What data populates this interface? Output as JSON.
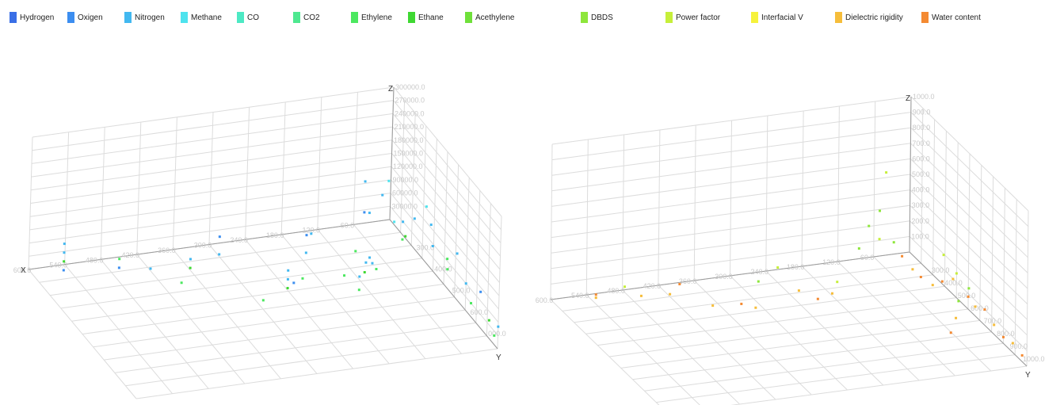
{
  "legend": [
    {
      "label": "Hydrogen",
      "color": "#3a6fe6"
    },
    {
      "label": "Oxigen",
      "color": "#3c8ef0"
    },
    {
      "label": "Nitrogen",
      "color": "#42b8f0"
    },
    {
      "label": "Methane",
      "color": "#4ee3ee"
    },
    {
      "label": "CO",
      "color": "#4de9c4"
    },
    {
      "label": "CO2",
      "color": "#4ee890"
    },
    {
      "label": "Ethylene",
      "color": "#4ce860"
    },
    {
      "label": "Ethane",
      "color": "#3fd832"
    },
    {
      "label": "Acethylene",
      "color": "#6fe03a"
    },
    {
      "label": "DBDS",
      "color": "#8ee63c"
    },
    {
      "label": "Power factor",
      "color": "#c6ef3a"
    },
    {
      "label": "Interfacial V",
      "color": "#f6f23c"
    },
    {
      "label": "Dielectric rigidity",
      "color": "#f6bd3a"
    },
    {
      "label": "Water content",
      "color": "#f48a32"
    }
  ],
  "chart_data": [
    {
      "type": "scatter",
      "title": "",
      "xlabel": "X",
      "ylabel": "Y",
      "zlabel": "Z",
      "xlim": [
        0,
        600
      ],
      "ylim": [
        0,
        600
      ],
      "zlim": [
        0,
        300000
      ],
      "x_ticks": [
        "60.0",
        "120.0",
        "180.0",
        "240.0",
        "300.0",
        "360.0",
        "420.0",
        "480.0",
        "540.0",
        "600.0"
      ],
      "z_ticks": [
        "30000.0",
        "60000.0",
        "90000.0",
        "120000.0",
        "150000.0",
        "180000.0",
        "210000.0",
        "240000.0",
        "270000.0",
        "300000.0"
      ],
      "y_ticks": [
        "300.0",
        "400.0",
        "500.0",
        "600.0",
        "000.0"
      ],
      "series_names": [
        "Hydrogen",
        "Oxigen",
        "Nitrogen",
        "Methane",
        "CO",
        "CO2",
        "Ethylene",
        "Ethane",
        "Acethylene"
      ],
      "points": [
        [
          560,
          60,
          20000,
          1
        ],
        [
          560,
          60,
          60000,
          2
        ],
        [
          560,
          60,
          80000,
          2
        ],
        [
          560,
          60,
          40000,
          7
        ],
        [
          480,
          100,
          30000,
          1
        ],
        [
          480,
          100,
          50000,
          6
        ],
        [
          440,
          140,
          40000,
          2
        ],
        [
          400,
          180,
          20000,
          6
        ],
        [
          380,
          160,
          60000,
          2
        ],
        [
          380,
          160,
          40000,
          7
        ],
        [
          320,
          120,
          80000,
          1
        ],
        [
          320,
          120,
          40000,
          2
        ],
        [
          300,
          300,
          20000,
          6
        ],
        [
          260,
          300,
          60000,
          2
        ],
        [
          260,
          300,
          80000,
          2
        ],
        [
          260,
          300,
          40000,
          7
        ],
        [
          250,
          300,
          50000,
          1
        ],
        [
          220,
          250,
          30000,
          6
        ],
        [
          200,
          200,
          100000,
          1
        ],
        [
          200,
          200,
          60000,
          2
        ],
        [
          180,
          160,
          80000,
          2
        ],
        [
          160,
          280,
          40000,
          6
        ],
        [
          150,
          330,
          30000,
          6
        ],
        [
          150,
          330,
          60000,
          2
        ],
        [
          140,
          330,
          90000,
          2
        ],
        [
          120,
          260,
          30000,
          7
        ],
        [
          120,
          300,
          70000,
          2
        ],
        [
          100,
          220,
          40000,
          2
        ],
        [
          90,
          180,
          120000,
          2
        ],
        [
          80,
          120,
          160000,
          2
        ],
        [
          80,
          120,
          90000,
          1
        ],
        [
          60,
          150,
          140000,
          2
        ],
        [
          50,
          150,
          170000,
          3
        ],
        [
          40,
          200,
          100000,
          2
        ],
        [
          40,
          200,
          60000,
          6
        ],
        [
          30,
          230,
          120000,
          2
        ],
        [
          20,
          260,
          160000,
          3
        ],
        [
          20,
          300,
          90000,
          2
        ],
        [
          10,
          350,
          60000,
          6
        ],
        [
          10,
          400,
          120000,
          2
        ],
        [
          0,
          420,
          60000,
          2
        ],
        [
          0,
          450,
          30000,
          6
        ],
        [
          0,
          500,
          80000,
          1
        ],
        [
          0,
          550,
          40000,
          7
        ],
        [
          0,
          580,
          20000,
          6
        ],
        [
          0,
          600,
          50000,
          2
        ],
        [
          70,
          250,
          130000,
          3
        ],
        [
          110,
          290,
          50000,
          6
        ],
        [
          130,
          240,
          70000,
          6
        ],
        [
          60,
          280,
          110000,
          7
        ],
        [
          30,
          320,
          150000,
          2
        ],
        [
          20,
          380,
          100000,
          6
        ]
      ]
    },
    {
      "type": "scatter",
      "title": "",
      "xlabel": "",
      "ylabel": "Y",
      "zlabel": "Z",
      "xlim": [
        0,
        600
      ],
      "ylim": [
        0,
        1000
      ],
      "zlim": [
        0,
        1000
      ],
      "x_ticks": [
        "60.0",
        "120.0",
        "180.0",
        "240.0",
        "300.0",
        "360.0",
        "420.0",
        "480.0",
        "540.0",
        "600.0"
      ],
      "z_ticks": [
        "100.0",
        "200.0",
        "300.0",
        "400.0",
        "500.0",
        "600.0",
        "700.0",
        "800.0",
        "900.0",
        "1000.0"
      ],
      "y_ticks": [
        "300.0",
        "400.0",
        "500.0",
        "600.0",
        "700.0",
        "800.0",
        "900.0",
        "1000.0"
      ],
      "series_names": [
        "DBDS",
        "Power factor",
        "Interfacial V",
        "Dielectric rigidity",
        "Water content"
      ],
      "points": [
        [
          540,
          80,
          60,
          4
        ],
        [
          540,
          80,
          40,
          3
        ],
        [
          500,
          120,
          120,
          1
        ],
        [
          480,
          160,
          80,
          3
        ],
        [
          440,
          200,
          100,
          3
        ],
        [
          420,
          180,
          140,
          4
        ],
        [
          380,
          260,
          40,
          3
        ],
        [
          340,
          300,
          60,
          4
        ],
        [
          320,
          320,
          40,
          3
        ],
        [
          300,
          240,
          140,
          0
        ],
        [
          260,
          200,
          180,
          1
        ],
        [
          240,
          280,
          80,
          3
        ],
        [
          220,
          340,
          60,
          4
        ],
        [
          200,
          360,
          100,
          3
        ],
        [
          180,
          300,
          120,
          1
        ],
        [
          140,
          280,
          300,
          0
        ],
        [
          120,
          260,
          420,
          0
        ],
        [
          110,
          300,
          360,
          1
        ],
        [
          100,
          250,
          500,
          0
        ],
        [
          80,
          200,
          700,
          1
        ],
        [
          70,
          220,
          260,
          0
        ],
        [
          60,
          240,
          180,
          4
        ],
        [
          50,
          280,
          120,
          3
        ],
        [
          40,
          300,
          80,
          4
        ],
        [
          30,
          350,
          60,
          3
        ],
        [
          20,
          380,
          100,
          4
        ],
        [
          10,
          420,
          140,
          3
        ],
        [
          0,
          500,
          80,
          4
        ],
        [
          0,
          560,
          60,
          3
        ],
        [
          0,
          640,
          100,
          4
        ],
        [
          0,
          720,
          60,
          3
        ],
        [
          0,
          800,
          40,
          4
        ],
        [
          0,
          880,
          60,
          3
        ],
        [
          0,
          960,
          40,
          4
        ],
        [
          20,
          500,
          240,
          1
        ],
        [
          40,
          620,
          160,
          0
        ],
        [
          60,
          700,
          120,
          3
        ],
        [
          80,
          760,
          80,
          4
        ],
        [
          30,
          440,
          320,
          1
        ],
        [
          15,
          580,
          200,
          0
        ]
      ]
    }
  ]
}
